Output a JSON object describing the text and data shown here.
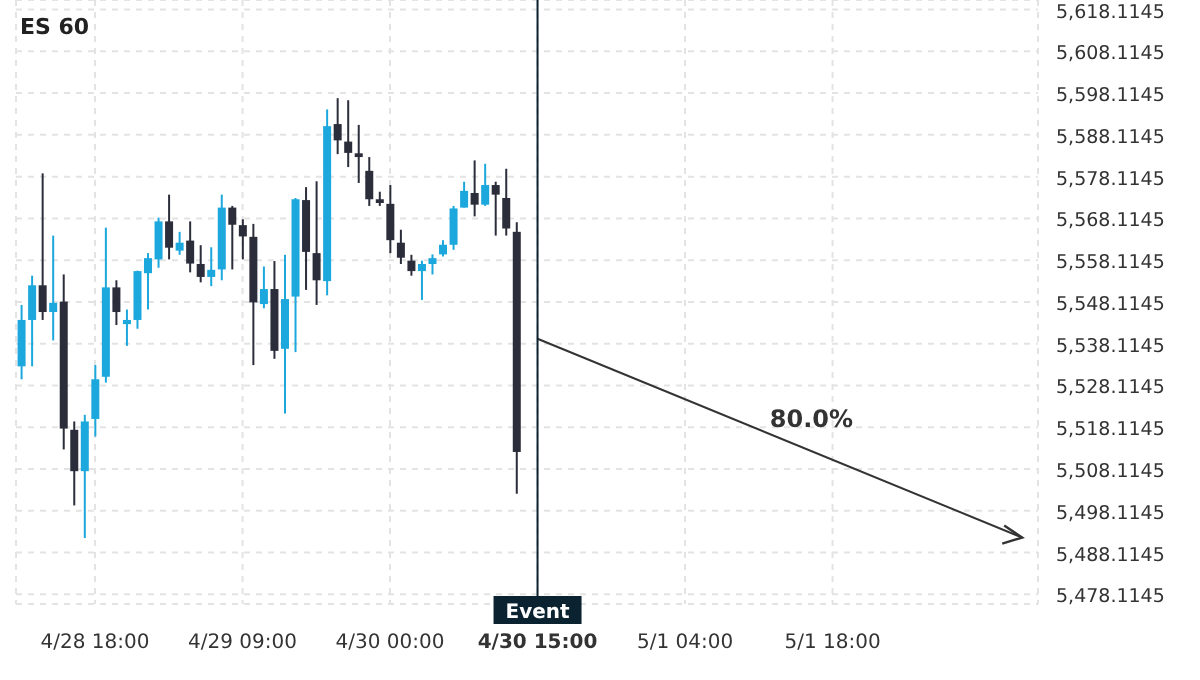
{
  "chart_data": {
    "type": "candlestick",
    "title": "ES 60",
    "categories": [
      null,
      null,
      null,
      null,
      null,
      null,
      null,
      "4/28 18:00",
      null,
      null,
      null,
      null,
      null,
      null,
      null,
      null,
      null,
      null,
      null,
      null,
      null,
      "4/29 09:00",
      null,
      null,
      null,
      null,
      null,
      null,
      null,
      null,
      null,
      null,
      null,
      null,
      null,
      "4/30 00:00",
      null,
      null,
      null,
      null,
      null,
      null,
      null,
      null,
      null,
      null,
      null,
      null,
      null,
      "4/30 15:00",
      null,
      null,
      null,
      null,
      null,
      null,
      null,
      null,
      null,
      null,
      null,
      null,
      null,
      "5/1 04:00",
      null,
      null,
      null,
      null,
      null,
      null,
      null,
      null,
      null,
      null,
      null,
      null,
      null,
      "5/1 18:00",
      null,
      null,
      null,
      null,
      null,
      null,
      null,
      null,
      null,
      null,
      null,
      null,
      null,
      null,
      null,
      null,
      null,
      null,
      null
    ],
    "ohlc": [
      [
        5532.7,
        5547.4,
        5529.6,
        5543.8
      ],
      [
        5543.8,
        5554.4,
        5532.7,
        5552.1
      ],
      [
        5552.1,
        5578.9,
        5543.8,
        5545.7
      ],
      [
        5545.7,
        5564.0,
        5538.9,
        5547.9
      ],
      [
        5548.2,
        5554.7,
        5512.8,
        5517.8
      ],
      [
        5517.5,
        5519.5,
        5499.4,
        5507.6
      ],
      [
        5507.6,
        5521.1,
        5491.6,
        5519.5
      ],
      [
        5520.1,
        5533.0,
        5515.9,
        5529.6
      ],
      [
        5530.2,
        5565.9,
        5528.8,
        5551.6
      ],
      [
        5551.6,
        5553.3,
        5542.6,
        5545.7
      ],
      [
        5542.8,
        5546.3,
        5537.6,
        5543.8
      ],
      [
        5543.8,
        5555.6,
        5541.7,
        5555.5
      ],
      [
        5555.0,
        5559.8,
        5546.3,
        5558.6
      ],
      [
        5558.3,
        5568.3,
        5556.3,
        5567.4
      ],
      [
        5567.4,
        5573.8,
        5558.3,
        5561.1
      ],
      [
        5560.4,
        5564.9,
        5559.4,
        5562.3
      ],
      [
        5562.8,
        5567.4,
        5555.2,
        5557.3
      ],
      [
        5557.2,
        5561.7,
        5552.8,
        5554.1
      ],
      [
        5554.1,
        5561.2,
        5551.9,
        5555.8
      ],
      [
        5555.9,
        5573.8,
        5553.3,
        5570.7
      ],
      [
        5570.7,
        5571.1,
        5555.9,
        5566.6
      ],
      [
        5566.5,
        5567.9,
        5558.3,
        5563.8
      ],
      [
        5563.7,
        5566.8,
        5533.0,
        5548.0
      ],
      [
        5547.6,
        5556.6,
        5546.6,
        5551.2
      ],
      [
        5551.2,
        5557.9,
        5534.5,
        5536.4
      ],
      [
        5536.9,
        5559.4,
        5521.4,
        5548.8
      ],
      [
        5549.4,
        5573.0,
        5536.1,
        5572.7
      ],
      [
        5572.5,
        5575.6,
        5551.0,
        5560.1
      ],
      [
        5559.8,
        5577.0,
        5547.4,
        5553.3
      ],
      [
        5553.1,
        5594.2,
        5549.7,
        5590.2
      ],
      [
        5590.7,
        5596.9,
        5583.5,
        5586.8
      ],
      [
        5586.5,
        5596.4,
        5580.4,
        5583.8
      ],
      [
        5583.7,
        5590.5,
        5576.6,
        5582.8
      ],
      [
        5579.5,
        5582.8,
        5571.1,
        5572.7
      ],
      [
        5572.7,
        5574.5,
        5571.1,
        5571.8
      ],
      [
        5571.6,
        5576.1,
        5559.8,
        5562.9
      ],
      [
        5562.3,
        5565.4,
        5557.2,
        5558.7
      ],
      [
        5558.0,
        5559.4,
        5554.4,
        5555.5
      ],
      [
        5555.5,
        5558.0,
        5548.6,
        5557.2
      ],
      [
        5557.2,
        5559.5,
        5554.7,
        5558.6
      ],
      [
        5559.5,
        5562.9,
        5559.0,
        5561.8
      ],
      [
        5561.8,
        5571.1,
        5560.6,
        5570.5
      ],
      [
        5570.7,
        5576.9,
        5570.7,
        5574.7
      ],
      [
        5574.2,
        5582.0,
        5568.6,
        5571.4
      ],
      [
        5571.4,
        5581.2,
        5571.1,
        5576.1
      ],
      [
        5576.1,
        5576.9,
        5564.0,
        5573.8
      ],
      [
        5573.0,
        5580.0,
        5564.0,
        5565.7
      ],
      [
        5564.9,
        5567.2,
        5502.2,
        5512.2
      ],
      null,
      null,
      null,
      null,
      null,
      null,
      null,
      null,
      null,
      null,
      null,
      null,
      null,
      null,
      null,
      null,
      null,
      null,
      null,
      null,
      null,
      null,
      null,
      null,
      null,
      null,
      null,
      null,
      null,
      null,
      null,
      null,
      null,
      null,
      null,
      null,
      null,
      null,
      null,
      null,
      null,
      null,
      null,
      null,
      null,
      null,
      null,
      null,
      null
    ],
    "colors": [
      "#1ca8dd",
      "#1ca8dd",
      "#2b2d3a",
      "#1ca8dd",
      "#2b2d3a",
      "#2b2d3a",
      "#1ca8dd",
      "#1ca8dd",
      "#1ca8dd",
      "#2b2d3a",
      "#1ca8dd",
      "#1ca8dd",
      "#1ca8dd",
      "#1ca8dd",
      "#2b2d3a",
      "#1ca8dd",
      "#2b2d3a",
      "#2b2d3a",
      "#1ca8dd",
      "#1ca8dd",
      "#2b2d3a",
      "#2b2d3a",
      "#2b2d3a",
      "#1ca8dd",
      "#2b2d3a",
      "#1ca8dd",
      "#1ca8dd",
      "#2b2d3a",
      "#2b2d3a",
      "#1ca8dd",
      "#2b2d3a",
      "#2b2d3a",
      "#2b2d3a",
      "#2b2d3a",
      "#2b2d3a",
      "#2b2d3a",
      "#2b2d3a",
      "#2b2d3a",
      "#1ca8dd",
      "#1ca8dd",
      "#1ca8dd",
      "#1ca8dd",
      "#1ca8dd",
      "#2b2d3a",
      "#1ca8dd",
      "#2b2d3a",
      "#2b2d3a",
      "#2b2d3a",
      null,
      null,
      null,
      null,
      null,
      null,
      null,
      null,
      null,
      null,
      null,
      null,
      null,
      null,
      null,
      null,
      null,
      null,
      null,
      null,
      null,
      null,
      null,
      null,
      null,
      null,
      null,
      null,
      null,
      null,
      null,
      null,
      null,
      null,
      null,
      null,
      null,
      null,
      null,
      null,
      null,
      null,
      null,
      null,
      null,
      null,
      null,
      null,
      null
    ],
    "series": [
      {
        "type": "line",
        "color": "#333333",
        "values": [
          null,
          null,
          null,
          null,
          null,
          null,
          null,
          null,
          null,
          null,
          null,
          null,
          null,
          null,
          null,
          null,
          null,
          null,
          null,
          null,
          null,
          null,
          null,
          null,
          null,
          null,
          null,
          null,
          null,
          null,
          null,
          null,
          null,
          null,
          null,
          null,
          null,
          null,
          null,
          null,
          null,
          null,
          null,
          null,
          null,
          null,
          null,
          null,
          null,
          5539.3,
          null,
          null,
          null,
          null,
          null,
          null,
          null,
          null,
          null,
          null,
          null,
          null,
          null,
          null,
          null,
          null,
          null,
          null,
          null,
          null,
          null,
          null,
          null,
          null,
          null,
          null,
          null,
          null,
          null,
          null,
          null,
          null,
          null,
          null,
          null,
          null,
          null,
          null,
          null,
          null,
          null,
          null,
          null,
          null,
          null,
          5491.7,
          null
        ]
      }
    ],
    "ylim": [
      5475.8,
      5620.4
    ],
    "yticks": [
      {
        "value": 5478.1145,
        "label": "5,478.1145"
      },
      {
        "value": 5488.1145,
        "label": "5,488.1145"
      },
      {
        "value": 5498.1145,
        "label": "5,498.1145"
      },
      {
        "value": 5508.1145,
        "label": "5,508.1145"
      },
      {
        "value": 5518.1145,
        "label": "5,518.1145"
      },
      {
        "value": 5528.1145,
        "label": "5,528.1145"
      },
      {
        "value": 5538.1145,
        "label": "5,538.1145"
      },
      {
        "value": 5548.1145,
        "label": "5,548.1145"
      },
      {
        "value": 5558.1145,
        "label": "5,558.1145"
      },
      {
        "value": 5568.1145,
        "label": "5,568.1145"
      },
      {
        "value": 5578.1145,
        "label": "5,578.1145"
      },
      {
        "value": 5588.1145,
        "label": "5,588.1145"
      },
      {
        "value": 5598.1145,
        "label": "5,598.1145"
      },
      {
        "value": 5608.1145,
        "label": "5,608.1145"
      },
      {
        "value": 5618.1145,
        "label": "5,618.1145"
      }
    ],
    "ref_lines": [
      {
        "axis": "x",
        "value": "4/30 15:00",
        "label": "Event",
        "color": "#0b2330"
      }
    ],
    "annotations": [
      "80.0%"
    ],
    "grid": true
  }
}
